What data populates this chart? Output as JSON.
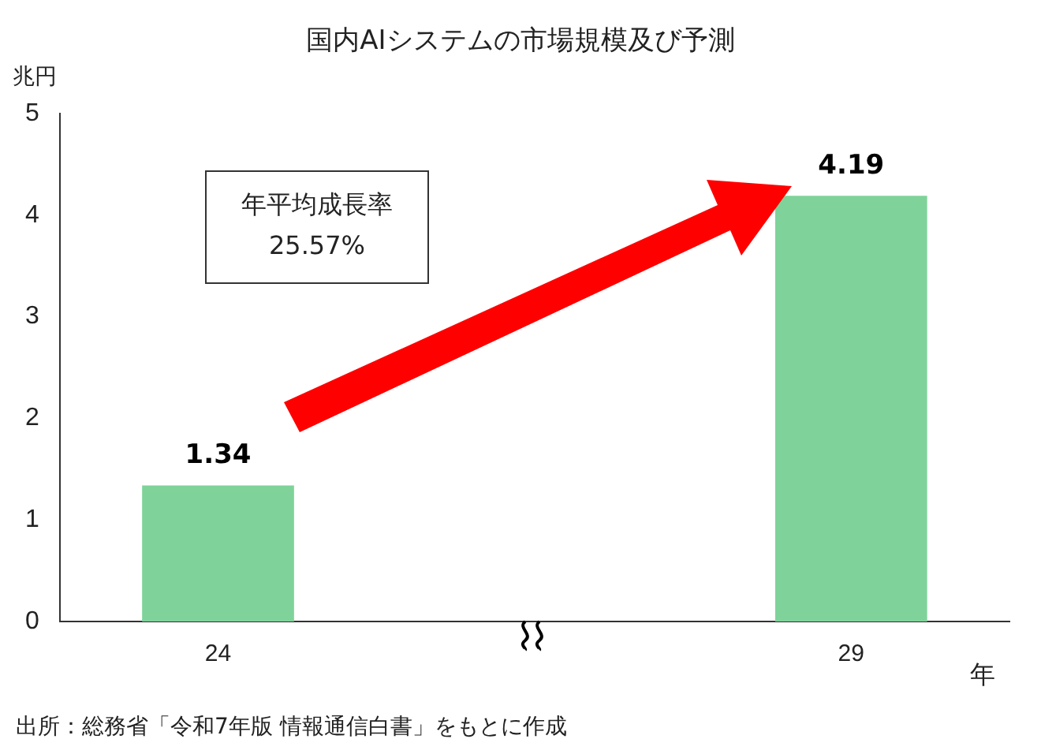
{
  "chart_data": {
    "type": "bar",
    "title": "国内AIシステムの市場規模及び予測",
    "ylabel": "兆円",
    "xlabel": "年",
    "categories": [
      "24",
      null,
      "29"
    ],
    "values": [
      1.34,
      null,
      4.19
    ],
    "color": "#7fd39a",
    "ylim": [
      0,
      5
    ],
    "yticks": [
      0,
      1,
      2,
      3,
      4,
      5
    ],
    "grid": false,
    "legend": false,
    "data_labels": true,
    "annotations": [
      "年平均成長率",
      "25.57%",
      "出所：総務省「令和7年版 情報通信白書」をもとに作成"
    ]
  }
}
